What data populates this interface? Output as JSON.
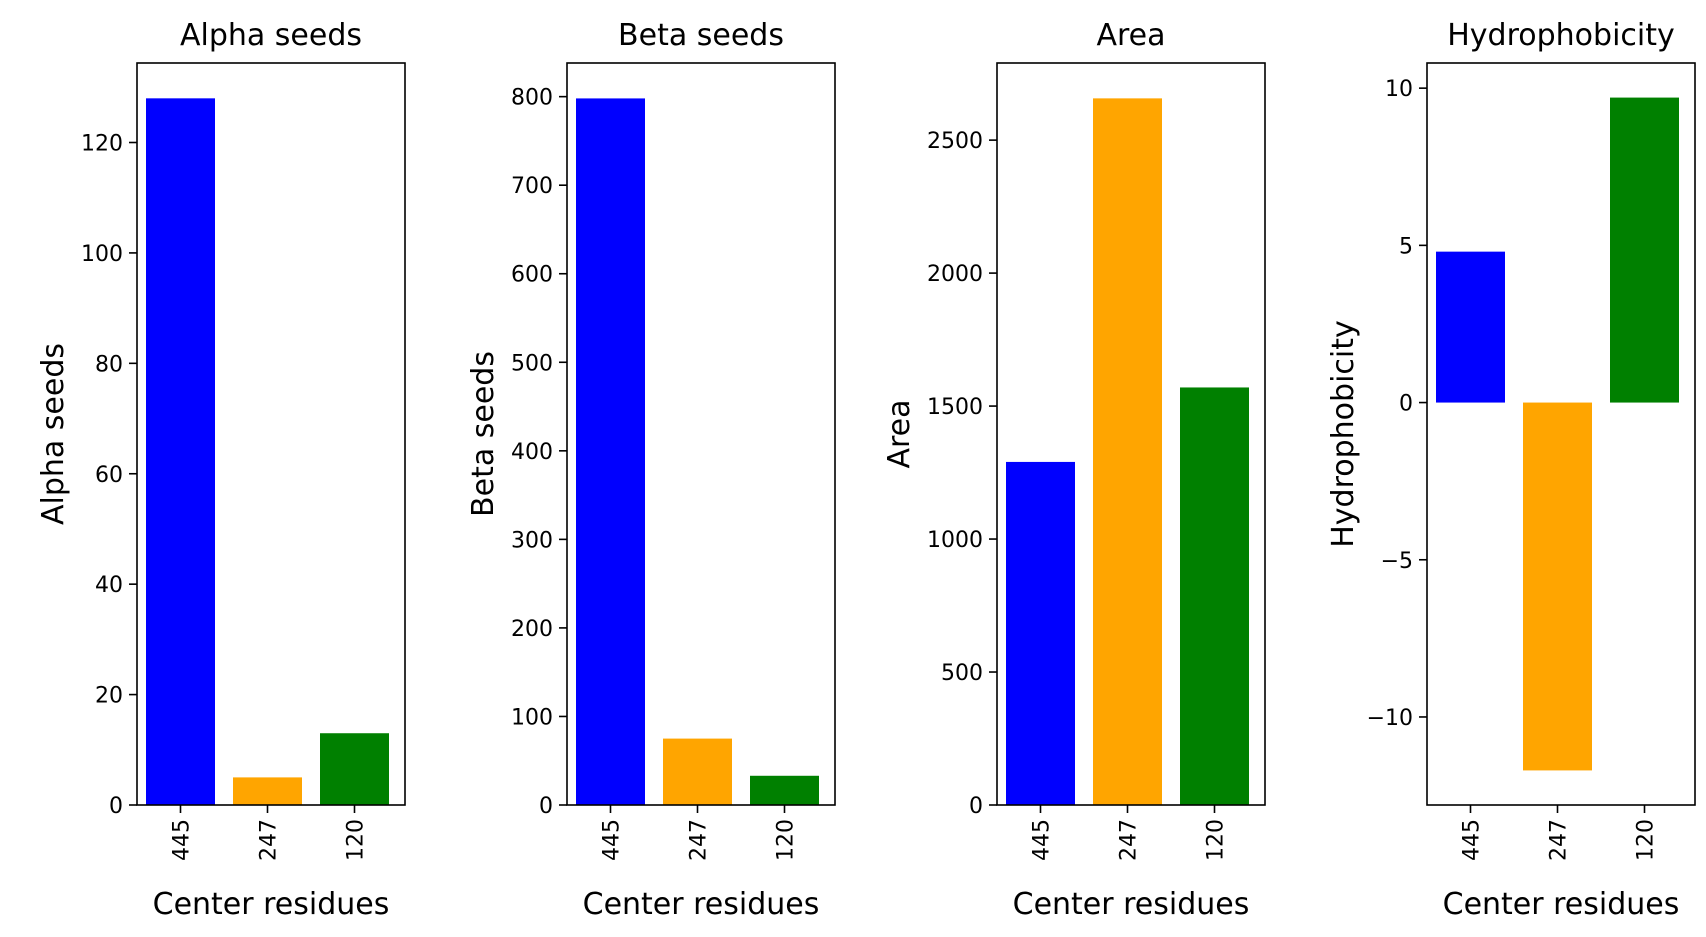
{
  "chart_data": [
    {
      "type": "bar",
      "title": "Alpha seeds",
      "xlabel": "Center residues",
      "ylabel": "Alpha seeds",
      "categories": [
        "445",
        "247",
        "120"
      ],
      "values": [
        128,
        5,
        13
      ],
      "colors": [
        "#0000ff",
        "#ffa500",
        "#008000"
      ],
      "ylim": [
        0,
        134.4
      ],
      "yticks": [
        0,
        20,
        40,
        60,
        80,
        100,
        120
      ],
      "ytick_labels": [
        "0",
        "20",
        "40",
        "60",
        "80",
        "100",
        "120"
      ],
      "grid": false
    },
    {
      "type": "bar",
      "title": "Beta seeds",
      "xlabel": "Center residues",
      "ylabel": "Beta seeds",
      "categories": [
        "445",
        "247",
        "120"
      ],
      "values": [
        798,
        75,
        33
      ],
      "colors": [
        "#0000ff",
        "#ffa500",
        "#008000"
      ],
      "ylim": [
        0,
        838
      ],
      "yticks": [
        0,
        100,
        200,
        300,
        400,
        500,
        600,
        700,
        800
      ],
      "ytick_labels": [
        "0",
        "100",
        "200",
        "300",
        "400",
        "500",
        "600",
        "700",
        "800"
      ],
      "grid": false
    },
    {
      "type": "bar",
      "title": "Area",
      "xlabel": "Center residues",
      "ylabel": "Area",
      "categories": [
        "445",
        "247",
        "120"
      ],
      "values": [
        1290,
        2657,
        1570
      ],
      "colors": [
        "#0000ff",
        "#ffa500",
        "#008000"
      ],
      "ylim": [
        0,
        2790
      ],
      "yticks": [
        0,
        500,
        1000,
        1500,
        2000,
        2500
      ],
      "ytick_labels": [
        "0",
        "500",
        "1000",
        "1500",
        "2000",
        "2500"
      ],
      "grid": false
    },
    {
      "type": "bar",
      "title": "Hydrophobicity",
      "xlabel": "Center residues",
      "ylabel": "Hydrophobicity",
      "categories": [
        "445",
        "247",
        "120"
      ],
      "values": [
        4.8,
        -11.7,
        9.7
      ],
      "colors": [
        "#0000ff",
        "#ffa500",
        "#008000"
      ],
      "ylim": [
        -12.8,
        10.8
      ],
      "yticks": [
        -10,
        -5,
        0,
        5,
        10
      ],
      "ytick_labels": [
        "−10",
        "−5",
        "0",
        "5",
        "10"
      ],
      "grid": false
    }
  ]
}
